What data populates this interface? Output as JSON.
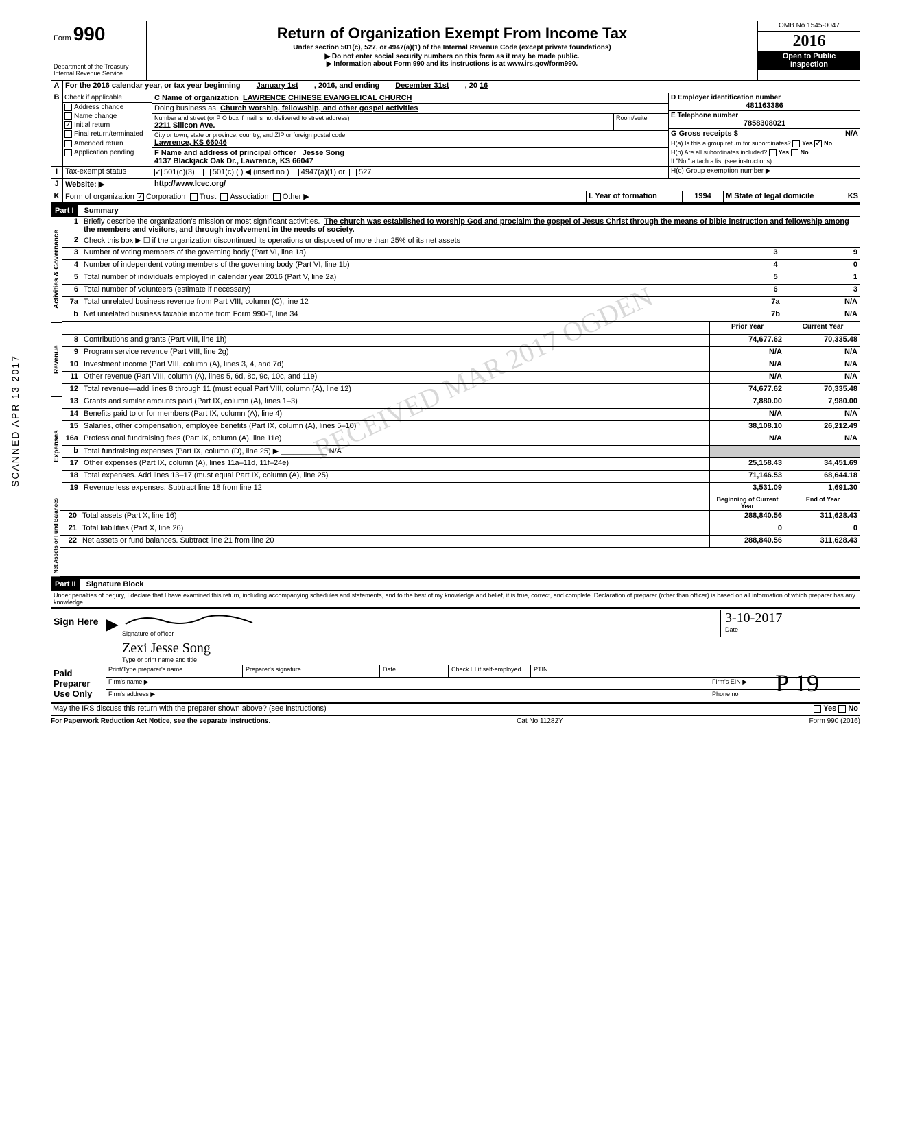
{
  "side_stamp": "SCANNED APR 13 2017",
  "header": {
    "form_label": "Form",
    "form_number": "990",
    "title": "Return of Organization Exempt From Income Tax",
    "subtitle": "Under section 501(c), 527, or 4947(a)(1) of the Internal Revenue Code (except private foundations)",
    "warning": "▶ Do not enter social security numbers on this form as it may be made public.",
    "info": "▶ Information about Form 990 and its instructions is at www.irs.gov/form990.",
    "dept": "Department of the Treasury",
    "irs": "Internal Revenue Service",
    "omb": "OMB No 1545-0047",
    "year": "2016",
    "open_public1": "Open to Public",
    "open_public2": "Inspection"
  },
  "lineA": {
    "label": "For the 2016 calendar year, or tax year beginning",
    "begin": "January 1st",
    "mid": ", 2016, and ending",
    "end": "December 31st",
    "yr_prefix": ", 20",
    "yr": "16"
  },
  "lineB": {
    "label": "Check if applicable",
    "opts": [
      "Address change",
      "Name change",
      "Initial return",
      "Final return/terminated",
      "Amended return",
      "Application pending"
    ],
    "initial_checked": true
  },
  "lineC": {
    "name_label": "C Name of organization",
    "name": "LAWRENCE CHINESE EVANGELICAL CHURCH",
    "dba_label": "Doing business as",
    "dba": "Church worship, fellowship, and other gospel activities",
    "addr_label": "Number and street (or P O box if mail is not delivered to street address)",
    "addr": "2211 Silicon Ave.",
    "room_label": "Room/suite",
    "city_label": "City or town, state or province, country, and ZIP or foreign postal code",
    "city": "Lawrence, KS 66046"
  },
  "lineD": {
    "label": "D Employer identification number",
    "value": "481163386"
  },
  "lineE": {
    "label": "E Telephone number",
    "value": "7858308021"
  },
  "lineG": {
    "label": "G Gross receipts $",
    "value": "N/A"
  },
  "lineF": {
    "label": "F Name and address of principal officer",
    "name": "Jesse Song",
    "addr": "4137 Blackjack Oak Dr., Lawrence, KS 66047"
  },
  "lineH": {
    "a": "H(a) Is this a group return for subordinates?",
    "b": "H(b) Are all subordinates included?",
    "no_note": "If \"No,\" attach a list (see instructions)",
    "c": "H(c) Group exemption number ▶",
    "yes": "Yes",
    "no": "No",
    "ha_no_checked": true
  },
  "lineI": {
    "label": "Tax-exempt status",
    "c3_checked": true,
    "opts": [
      "501(c)(3)",
      "501(c) (",
      "4947(a)(1) or",
      "527"
    ],
    "insert": ") ◀ (insert no )"
  },
  "lineJ": {
    "label": "Website: ▶",
    "value": "http://www.lcec.org/"
  },
  "lineK": {
    "form_label": "Form of organization",
    "opts": [
      "Corporation",
      "Trust",
      "Association",
      "Other ▶"
    ],
    "corp_checked": true,
    "year_label": "L Year of formation",
    "year": "1994",
    "state_label": "M State of legal domicile",
    "state": "KS"
  },
  "part1": {
    "header": "Part I",
    "title": "Summary"
  },
  "summary": {
    "q1_label": "Briefly describe the organization's mission or most significant activities.",
    "q1_text": "The church was established to worship God and proclaim the gospel of Jesus Christ through the means of bible instruction and fellowship among the members and visitors, and through involvement in the needs of society.",
    "q2": "Check this box ▶ ☐ if the organization discontinued its operations or disposed of more than 25% of its net assets",
    "rows_gov": [
      {
        "n": "3",
        "label": "Number of voting members of the governing body (Part VI, line 1a)",
        "box": "3",
        "val": "9"
      },
      {
        "n": "4",
        "label": "Number of independent voting members of the governing body (Part VI, line 1b)",
        "box": "4",
        "val": "0"
      },
      {
        "n": "5",
        "label": "Total number of individuals employed in calendar year 2016 (Part V, line 2a)",
        "box": "5",
        "val": "1"
      },
      {
        "n": "6",
        "label": "Total number of volunteers (estimate if necessary)",
        "box": "6",
        "val": "3"
      },
      {
        "n": "7a",
        "label": "Total unrelated business revenue from Part VIII, column (C), line 12",
        "box": "7a",
        "val": "N/A"
      },
      {
        "n": "b",
        "label": "Net unrelated business taxable income from Form 990-T, line 34",
        "box": "7b",
        "val": "N/A"
      }
    ],
    "col_prior": "Prior Year",
    "col_current": "Current Year",
    "rows_rev": [
      {
        "n": "8",
        "label": "Contributions and grants (Part VIII, line 1h)",
        "prior": "74,677.62",
        "curr": "70,335.48"
      },
      {
        "n": "9",
        "label": "Program service revenue (Part VIII, line 2g)",
        "prior": "N/A",
        "curr": "N/A"
      },
      {
        "n": "10",
        "label": "Investment income (Part VIII, column (A), lines 3, 4, and 7d)",
        "prior": "N/A",
        "curr": "N/A"
      },
      {
        "n": "11",
        "label": "Other revenue (Part VIII, column (A), lines 5, 6d, 8c, 9c, 10c, and 11e)",
        "prior": "N/A",
        "curr": "N/A"
      },
      {
        "n": "12",
        "label": "Total revenue—add lines 8 through 11 (must equal Part VIII, column (A), line 12)",
        "prior": "74,677.62",
        "curr": "70,335.48"
      }
    ],
    "rows_exp": [
      {
        "n": "13",
        "label": "Grants and similar amounts paid (Part IX, column (A), lines 1–3)",
        "prior": "7,880.00",
        "curr": "7,980.00"
      },
      {
        "n": "14",
        "label": "Benefits paid to or for members (Part IX, column (A), line 4)",
        "prior": "N/A",
        "curr": "N/A"
      },
      {
        "n": "15",
        "label": "Salaries, other compensation, employee benefits (Part IX, column (A), lines 5–10)",
        "prior": "38,108.10",
        "curr": "26,212.49"
      },
      {
        "n": "16a",
        "label": "Professional fundraising fees (Part IX, column (A), line 11e)",
        "prior": "N/A",
        "curr": "N/A"
      },
      {
        "n": "b",
        "label": "Total fundraising expenses (Part IX, column (D), line 25) ▶ ___________ N/A",
        "prior": "",
        "curr": ""
      },
      {
        "n": "17",
        "label": "Other expenses (Part IX, column (A), lines 11a–11d, 11f–24e)",
        "prior": "25,158.43",
        "curr": "34,451.69"
      },
      {
        "n": "18",
        "label": "Total expenses. Add lines 13–17 (must equal Part IX, column (A), line 25)",
        "prior": "71,146.53",
        "curr": "68,644.18"
      },
      {
        "n": "19",
        "label": "Revenue less expenses. Subtract line 18 from line 12",
        "prior": "3,531.09",
        "curr": "1,691.30"
      }
    ],
    "col_begin": "Beginning of Current Year",
    "col_end": "End of Year",
    "rows_net": [
      {
        "n": "20",
        "label": "Total assets (Part X, line 16)",
        "prior": "288,840.56",
        "curr": "311,628.43"
      },
      {
        "n": "21",
        "label": "Total liabilities (Part X, line 26)",
        "prior": "0",
        "curr": "0"
      },
      {
        "n": "22",
        "label": "Net assets or fund balances. Subtract line 21 from line 20",
        "prior": "288,840.56",
        "curr": "311,628.43"
      }
    ],
    "vtabs": {
      "gov": "Activities & Governance",
      "rev": "Revenue",
      "exp": "Expenses",
      "net": "Net Assets or\nFund Balances"
    }
  },
  "part2": {
    "header": "Part II",
    "title": "Signature Block",
    "perjury": "Under penalties of perjury, I declare that I have examined this return, including accompanying schedules and statements, and to the best of my knowledge and belief, it is true, correct, and complete. Declaration of preparer (other than officer) is based on all information of which preparer has any knowledge"
  },
  "sign": {
    "label": "Sign Here",
    "sig_label": "Signature of officer",
    "date_label": "Date",
    "date": "3-10-2017",
    "name_label": "Type or print name and title",
    "typed_name": "Zexi   Jesse   Song"
  },
  "preparer": {
    "label": "Paid Preparer Use Only",
    "name_label": "Print/Type preparer's name",
    "sig_label": "Preparer's signature",
    "date_label": "Date",
    "check_label": "Check ☐ if self-employed",
    "ptin_label": "PTIN",
    "firm_name": "Firm's name ▶",
    "firm_ein": "Firm's EIN ▶",
    "firm_addr": "Firm's address ▶",
    "phone": "Phone no"
  },
  "footer": {
    "irs_discuss": "May the IRS discuss this return with the preparer shown above? (see instructions)",
    "yes": "Yes",
    "no": "No",
    "pra": "For Paperwork Reduction Act Notice, see the separate instructions.",
    "cat": "Cat No 11282Y",
    "form": "Form 990 (2016)"
  },
  "watermark": "RECEIVED MAR 2017 OGDEN",
  "bottom_marks": "P     19"
}
